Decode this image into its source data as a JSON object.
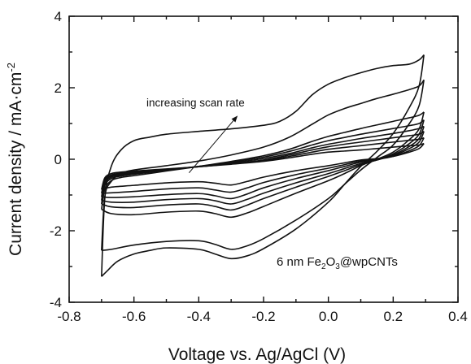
{
  "chart_data": {
    "type": "line",
    "title": "",
    "xlabel": "Voltage vs. Ag/AgCl (V)",
    "ylabel": "Current density / mA·cm",
    "ylabel_sup": "-2",
    "xlim": [
      -0.8,
      0.4
    ],
    "ylim": [
      -4,
      4
    ],
    "x_ticks": [
      -0.8,
      -0.6,
      -0.4,
      -0.2,
      0.0,
      0.2,
      0.4
    ],
    "x_tick_labels": [
      "-0.8",
      "-0.6",
      "-0.4",
      "-0.2",
      "0.0",
      "0.2",
      "0.4"
    ],
    "y_ticks": [
      -4,
      -2,
      0,
      2,
      4
    ],
    "y_tick_labels": [
      "-4",
      "-2",
      "0",
      "2",
      "4"
    ],
    "grid": false,
    "legend": "none",
    "line_color": "#111111",
    "annotation": {
      "text": "increasing scan rate",
      "arrow_from": [
        -0.43,
        -0.38
      ],
      "arrow_to": [
        -0.28,
        1.22
      ]
    },
    "sample_label": {
      "prefix": "6 nm Fe",
      "sub1": "2",
      "mid": "O",
      "sub2": "3",
      "suffix": "@wpCNTs"
    },
    "series": [
      {
        "upper": [
          [
            -0.7,
            -0.85
          ],
          [
            -0.69,
            -0.52
          ],
          [
            -0.67,
            -0.4
          ],
          [
            -0.64,
            -0.36
          ],
          [
            -0.6,
            -0.33
          ],
          [
            -0.5,
            -0.27
          ],
          [
            -0.4,
            -0.21
          ],
          [
            -0.3,
            -0.14
          ],
          [
            -0.2,
            -0.06
          ],
          [
            -0.12,
            0.04
          ],
          [
            -0.05,
            0.14
          ],
          [
            0.0,
            0.2
          ],
          [
            0.05,
            0.23
          ],
          [
            0.1,
            0.26
          ],
          [
            0.15,
            0.3
          ],
          [
            0.2,
            0.34
          ],
          [
            0.25,
            0.38
          ],
          [
            0.28,
            0.4
          ],
          [
            0.295,
            0.44
          ]
        ],
        "lower": [
          [
            0.295,
            0.44
          ],
          [
            0.28,
            0.3
          ],
          [
            0.25,
            0.2
          ],
          [
            0.2,
            0.08
          ],
          [
            0.15,
            0.02
          ],
          [
            0.1,
            -0.02
          ],
          [
            0.05,
            -0.1
          ],
          [
            0.0,
            -0.18
          ],
          [
            -0.1,
            -0.32
          ],
          [
            -0.2,
            -0.5
          ],
          [
            -0.25,
            -0.62
          ],
          [
            -0.3,
            -0.72
          ],
          [
            -0.35,
            -0.67
          ],
          [
            -0.4,
            -0.63
          ],
          [
            -0.5,
            -0.66
          ],
          [
            -0.6,
            -0.73
          ],
          [
            -0.67,
            -0.78
          ],
          [
            -0.7,
            -0.85
          ]
        ]
      },
      {
        "upper": [
          [
            -0.7,
            -0.95
          ],
          [
            -0.69,
            -0.57
          ],
          [
            -0.67,
            -0.44
          ],
          [
            -0.64,
            -0.39
          ],
          [
            -0.6,
            -0.36
          ],
          [
            -0.5,
            -0.28
          ],
          [
            -0.4,
            -0.21
          ],
          [
            -0.3,
            -0.13
          ],
          [
            -0.2,
            -0.04
          ],
          [
            -0.12,
            0.08
          ],
          [
            -0.05,
            0.2
          ],
          [
            0.0,
            0.28
          ],
          [
            0.05,
            0.33
          ],
          [
            0.1,
            0.38
          ],
          [
            0.15,
            0.43
          ],
          [
            0.2,
            0.48
          ],
          [
            0.25,
            0.53
          ],
          [
            0.28,
            0.56
          ],
          [
            0.295,
            0.6
          ]
        ],
        "lower": [
          [
            0.295,
            0.6
          ],
          [
            0.28,
            0.38
          ],
          [
            0.25,
            0.24
          ],
          [
            0.2,
            0.08
          ],
          [
            0.15,
            0.0
          ],
          [
            0.1,
            -0.05
          ],
          [
            0.05,
            -0.15
          ],
          [
            0.0,
            -0.25
          ],
          [
            -0.1,
            -0.43
          ],
          [
            -0.2,
            -0.65
          ],
          [
            -0.25,
            -0.8
          ],
          [
            -0.3,
            -0.92
          ],
          [
            -0.35,
            -0.86
          ],
          [
            -0.4,
            -0.8
          ],
          [
            -0.5,
            -0.83
          ],
          [
            -0.6,
            -0.9
          ],
          [
            -0.67,
            -0.94
          ],
          [
            -0.7,
            -0.95
          ]
        ]
      },
      {
        "upper": [
          [
            -0.7,
            -1.05
          ],
          [
            -0.69,
            -0.62
          ],
          [
            -0.67,
            -0.47
          ],
          [
            -0.64,
            -0.41
          ],
          [
            -0.6,
            -0.38
          ],
          [
            -0.5,
            -0.29
          ],
          [
            -0.4,
            -0.21
          ],
          [
            -0.3,
            -0.12
          ],
          [
            -0.2,
            -0.02
          ],
          [
            -0.12,
            0.12
          ],
          [
            -0.05,
            0.26
          ],
          [
            0.0,
            0.35
          ],
          [
            0.05,
            0.42
          ],
          [
            0.1,
            0.48
          ],
          [
            0.15,
            0.54
          ],
          [
            0.2,
            0.6
          ],
          [
            0.25,
            0.66
          ],
          [
            0.28,
            0.7
          ],
          [
            0.295,
            0.78
          ]
        ],
        "lower": [
          [
            0.295,
            0.78
          ],
          [
            0.28,
            0.48
          ],
          [
            0.25,
            0.3
          ],
          [
            0.2,
            0.1
          ],
          [
            0.15,
            0.0
          ],
          [
            0.1,
            -0.08
          ],
          [
            0.05,
            -0.2
          ],
          [
            0.0,
            -0.32
          ],
          [
            -0.1,
            -0.54
          ],
          [
            -0.2,
            -0.8
          ],
          [
            -0.25,
            -0.97
          ],
          [
            -0.3,
            -1.1
          ],
          [
            -0.35,
            -1.02
          ],
          [
            -0.4,
            -0.96
          ],
          [
            -0.5,
            -0.99
          ],
          [
            -0.6,
            -1.05
          ],
          [
            -0.67,
            -1.07
          ],
          [
            -0.7,
            -1.05
          ]
        ]
      },
      {
        "upper": [
          [
            -0.7,
            -1.15
          ],
          [
            -0.69,
            -0.68
          ],
          [
            -0.67,
            -0.5
          ],
          [
            -0.64,
            -0.44
          ],
          [
            -0.6,
            -0.4
          ],
          [
            -0.5,
            -0.3
          ],
          [
            -0.4,
            -0.2
          ],
          [
            -0.3,
            -0.1
          ],
          [
            -0.2,
            0.02
          ],
          [
            -0.12,
            0.16
          ],
          [
            -0.05,
            0.32
          ],
          [
            0.0,
            0.42
          ],
          [
            0.05,
            0.5
          ],
          [
            0.1,
            0.58
          ],
          [
            0.15,
            0.65
          ],
          [
            0.2,
            0.72
          ],
          [
            0.25,
            0.8
          ],
          [
            0.28,
            0.86
          ],
          [
            0.295,
            0.92
          ]
        ],
        "lower": [
          [
            0.295,
            0.92
          ],
          [
            0.28,
            0.58
          ],
          [
            0.25,
            0.36
          ],
          [
            0.2,
            0.12
          ],
          [
            0.15,
            -0.02
          ],
          [
            0.1,
            -0.12
          ],
          [
            0.05,
            -0.26
          ],
          [
            0.0,
            -0.4
          ],
          [
            -0.1,
            -0.66
          ],
          [
            -0.2,
            -0.95
          ],
          [
            -0.25,
            -1.12
          ],
          [
            -0.3,
            -1.25
          ],
          [
            -0.35,
            -1.16
          ],
          [
            -0.4,
            -1.1
          ],
          [
            -0.5,
            -1.13
          ],
          [
            -0.6,
            -1.2
          ],
          [
            -0.67,
            -1.2
          ],
          [
            -0.7,
            -1.15
          ]
        ]
      },
      {
        "upper": [
          [
            -0.7,
            -1.25
          ],
          [
            -0.69,
            -0.74
          ],
          [
            -0.67,
            -0.54
          ],
          [
            -0.64,
            -0.47
          ],
          [
            -0.6,
            -0.42
          ],
          [
            -0.5,
            -0.31
          ],
          [
            -0.4,
            -0.2
          ],
          [
            -0.3,
            -0.08
          ],
          [
            -0.2,
            0.06
          ],
          [
            -0.12,
            0.22
          ],
          [
            -0.05,
            0.4
          ],
          [
            0.0,
            0.52
          ],
          [
            0.05,
            0.61
          ],
          [
            0.1,
            0.7
          ],
          [
            0.15,
            0.78
          ],
          [
            0.2,
            0.86
          ],
          [
            0.25,
            0.94
          ],
          [
            0.28,
            1.0
          ],
          [
            0.295,
            1.1
          ]
        ],
        "lower": [
          [
            0.295,
            1.1
          ],
          [
            0.28,
            0.7
          ],
          [
            0.25,
            0.44
          ],
          [
            0.2,
            0.15
          ],
          [
            0.15,
            -0.02
          ],
          [
            0.1,
            -0.15
          ],
          [
            0.05,
            -0.32
          ],
          [
            0.0,
            -0.48
          ],
          [
            -0.1,
            -0.78
          ],
          [
            -0.2,
            -1.1
          ],
          [
            -0.25,
            -1.28
          ],
          [
            -0.3,
            -1.42
          ],
          [
            -0.35,
            -1.32
          ],
          [
            -0.4,
            -1.25
          ],
          [
            -0.5,
            -1.28
          ],
          [
            -0.6,
            -1.35
          ],
          [
            -0.67,
            -1.33
          ],
          [
            -0.7,
            -1.25
          ]
        ]
      },
      {
        "upper": [
          [
            -0.7,
            -1.4
          ],
          [
            -0.69,
            -0.84
          ],
          [
            -0.67,
            -0.6
          ],
          [
            -0.64,
            -0.51
          ],
          [
            -0.6,
            -0.46
          ],
          [
            -0.5,
            -0.33
          ],
          [
            -0.4,
            -0.2
          ],
          [
            -0.3,
            -0.06
          ],
          [
            -0.2,
            0.1
          ],
          [
            -0.12,
            0.28
          ],
          [
            -0.05,
            0.5
          ],
          [
            0.0,
            0.64
          ],
          [
            0.05,
            0.75
          ],
          [
            0.1,
            0.86
          ],
          [
            0.15,
            0.96
          ],
          [
            0.2,
            1.06
          ],
          [
            0.25,
            1.16
          ],
          [
            0.28,
            1.23
          ],
          [
            0.295,
            1.32
          ]
        ],
        "lower": [
          [
            0.295,
            1.32
          ],
          [
            0.28,
            0.85
          ],
          [
            0.25,
            0.55
          ],
          [
            0.2,
            0.2
          ],
          [
            0.15,
            0.0
          ],
          [
            0.1,
            -0.18
          ],
          [
            0.05,
            -0.4
          ],
          [
            0.0,
            -0.6
          ],
          [
            -0.1,
            -0.95
          ],
          [
            -0.2,
            -1.32
          ],
          [
            -0.25,
            -1.5
          ],
          [
            -0.3,
            -1.62
          ],
          [
            -0.35,
            -1.52
          ],
          [
            -0.4,
            -1.45
          ],
          [
            -0.5,
            -1.48
          ],
          [
            -0.6,
            -1.55
          ],
          [
            -0.67,
            -1.52
          ],
          [
            -0.7,
            -1.4
          ]
        ]
      },
      {
        "upper": [
          [
            -0.7,
            -2.55
          ],
          [
            -0.69,
            -1.05
          ],
          [
            -0.67,
            -0.62
          ],
          [
            -0.64,
            -0.4
          ],
          [
            -0.6,
            -0.3
          ],
          [
            -0.5,
            -0.18
          ],
          [
            -0.4,
            -0.05
          ],
          [
            -0.3,
            0.12
          ],
          [
            -0.2,
            0.34
          ],
          [
            -0.12,
            0.62
          ],
          [
            -0.05,
            0.98
          ],
          [
            0.0,
            1.24
          ],
          [
            0.05,
            1.42
          ],
          [
            0.1,
            1.56
          ],
          [
            0.15,
            1.7
          ],
          [
            0.2,
            1.82
          ],
          [
            0.25,
            1.95
          ],
          [
            0.28,
            2.05
          ],
          [
            0.295,
            2.22
          ]
        ],
        "lower": [
          [
            0.295,
            2.22
          ],
          [
            0.28,
            1.5
          ],
          [
            0.25,
            1.0
          ],
          [
            0.2,
            0.4
          ],
          [
            0.15,
            0.05
          ],
          [
            0.1,
            -0.3
          ],
          [
            0.05,
            -0.7
          ],
          [
            0.0,
            -1.1
          ],
          [
            -0.1,
            -1.7
          ],
          [
            -0.2,
            -2.22
          ],
          [
            -0.25,
            -2.42
          ],
          [
            -0.3,
            -2.52
          ],
          [
            -0.35,
            -2.38
          ],
          [
            -0.4,
            -2.28
          ],
          [
            -0.5,
            -2.3
          ],
          [
            -0.6,
            -2.4
          ],
          [
            -0.67,
            -2.52
          ],
          [
            -0.7,
            -2.55
          ]
        ]
      },
      {
        "upper": [
          [
            -0.7,
            -3.28
          ],
          [
            -0.69,
            -1.1
          ],
          [
            -0.67,
            -0.2
          ],
          [
            -0.64,
            0.26
          ],
          [
            -0.6,
            0.52
          ],
          [
            -0.55,
            0.62
          ],
          [
            -0.5,
            0.7
          ],
          [
            -0.4,
            0.78
          ],
          [
            -0.3,
            0.85
          ],
          [
            -0.2,
            0.95
          ],
          [
            -0.15,
            1.06
          ],
          [
            -0.1,
            1.34
          ],
          [
            -0.05,
            1.8
          ],
          [
            0.0,
            2.1
          ],
          [
            0.05,
            2.28
          ],
          [
            0.1,
            2.42
          ],
          [
            0.15,
            2.54
          ],
          [
            0.2,
            2.62
          ],
          [
            0.25,
            2.66
          ],
          [
            0.28,
            2.78
          ],
          [
            0.295,
            2.92
          ]
        ],
        "lower": [
          [
            0.295,
            2.92
          ],
          [
            0.28,
            2.05
          ],
          [
            0.25,
            1.45
          ],
          [
            0.2,
            0.72
          ],
          [
            0.15,
            0.22
          ],
          [
            0.1,
            -0.2
          ],
          [
            0.05,
            -0.7
          ],
          [
            0.0,
            -1.2
          ],
          [
            -0.1,
            -1.95
          ],
          [
            -0.2,
            -2.5
          ],
          [
            -0.25,
            -2.7
          ],
          [
            -0.3,
            -2.78
          ],
          [
            -0.35,
            -2.65
          ],
          [
            -0.4,
            -2.52
          ],
          [
            -0.5,
            -2.48
          ],
          [
            -0.55,
            -2.55
          ],
          [
            -0.6,
            -2.65
          ],
          [
            -0.65,
            -2.85
          ],
          [
            -0.68,
            -3.1
          ],
          [
            -0.7,
            -3.28
          ]
        ]
      }
    ]
  }
}
